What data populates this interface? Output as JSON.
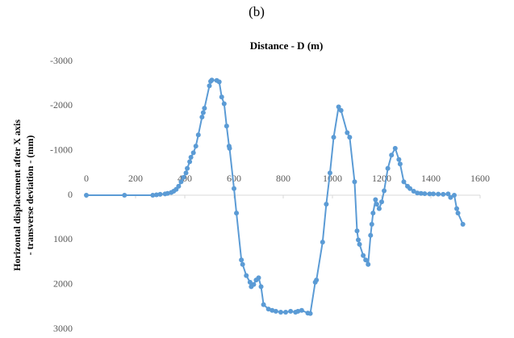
{
  "chart_data": {
    "type": "line",
    "panel_label": "(b)",
    "title": "Distance - D (m)",
    "y_label": [
      "Horizontal displacement after X axis",
      "- transverse deviation - (mm)"
    ],
    "xlim": [
      0,
      1600
    ],
    "xticks": [
      0,
      200,
      400,
      600,
      800,
      1000,
      1200,
      1400,
      1600
    ],
    "ylim": [
      -3000,
      3000
    ],
    "yticks": [
      -3000,
      -2000,
      -1000,
      0,
      1000,
      2000,
      3000
    ],
    "y_inverted": true,
    "grid": false,
    "series": [
      {
        "color": "#5b9bd5",
        "x": [
          0,
          155,
          270,
          285,
          300,
          320,
          330,
          345,
          355,
          365,
          375,
          385,
          395,
          405,
          410,
          420,
          425,
          435,
          445,
          455,
          470,
          475,
          480,
          500,
          505,
          510,
          530,
          540,
          550,
          560,
          570,
          580,
          582,
          600,
          610,
          630,
          635,
          650,
          665,
          670,
          680,
          690,
          700,
          710,
          720,
          740,
          755,
          770,
          790,
          810,
          830,
          850,
          860,
          875,
          900,
          910,
          930,
          935,
          960,
          975,
          990,
          1005,
          1025,
          1035,
          1060,
          1070,
          1090,
          1100,
          1105,
          1110,
          1125,
          1135,
          1145,
          1155,
          1160,
          1165,
          1175,
          1180,
          1190,
          1200,
          1210,
          1225,
          1240,
          1255,
          1270,
          1275,
          1290,
          1305,
          1315,
          1330,
          1345,
          1360,
          1375,
          1395,
          1410,
          1430,
          1450,
          1470,
          1480,
          1495,
          1505,
          1510,
          1530
        ],
        "values": [
          0,
          0,
          0,
          -10,
          -20,
          -30,
          -40,
          -60,
          -90,
          -130,
          -200,
          -300,
          -400,
          -500,
          -600,
          -750,
          -850,
          -950,
          -1100,
          -1350,
          -1750,
          -1850,
          -1950,
          -2450,
          -2550,
          -2580,
          -2570,
          -2540,
          -2200,
          -2050,
          -1550,
          -1100,
          -1050,
          -150,
          400,
          1450,
          1550,
          1800,
          1950,
          2050,
          2000,
          1900,
          1850,
          2050,
          2450,
          2550,
          2580,
          2600,
          2620,
          2620,
          2600,
          2620,
          2600,
          2580,
          2640,
          2650,
          1950,
          1900,
          1050,
          200,
          -500,
          -1300,
          -1980,
          -1900,
          -1400,
          -1300,
          -300,
          800,
          1000,
          1100,
          1350,
          1450,
          1550,
          900,
          650,
          400,
          100,
          200,
          300,
          150,
          -100,
          -600,
          -900,
          -1050,
          -800,
          -700,
          -300,
          -200,
          -150,
          -90,
          -50,
          -40,
          -35,
          -30,
          -30,
          -25,
          -20,
          -30,
          50,
          0,
          300,
          400,
          650
        ]
      }
    ]
  }
}
